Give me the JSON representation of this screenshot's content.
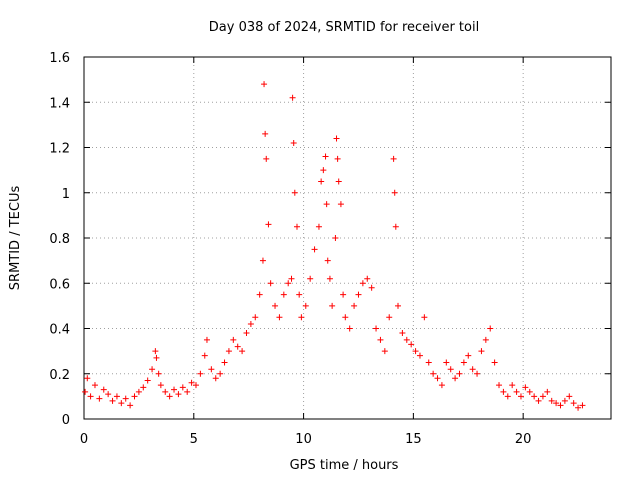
{
  "chart_data": {
    "type": "scatter",
    "title": "Day 038 of 2024, SRMTID for receiver toil",
    "xlabel": "GPS time / hours",
    "ylabel": "SRMTID / TECUs",
    "xlim": [
      0,
      24
    ],
    "ylim": [
      0,
      1.6
    ],
    "xticks": [
      0,
      5,
      10,
      15,
      20
    ],
    "xtick_labels": [
      "0",
      "5",
      "10",
      "15",
      "20"
    ],
    "yticks": [
      0,
      0.2,
      0.4,
      0.6,
      0.8,
      1,
      1.2,
      1.4,
      1.6
    ],
    "ytick_labels": [
      "0",
      "0.2",
      "0.4",
      "0.6",
      "0.8",
      "1",
      "1.2",
      "1.4",
      "1.6"
    ],
    "grid": true,
    "marker": "+",
    "color": "#ff0000",
    "series": [
      {
        "name": "SRMTID",
        "x": [
          0.05,
          0.15,
          0.3,
          0.5,
          0.7,
          0.9,
          1.1,
          1.3,
          1.5,
          1.7,
          1.9,
          2.1,
          2.3,
          2.5,
          2.7,
          2.9,
          3.1,
          3.25,
          3.3,
          3.4,
          3.5,
          3.7,
          3.9,
          4.1,
          4.3,
          4.5,
          4.7,
          4.9,
          5.1,
          5.3,
          5.5,
          5.6,
          5.8,
          6.0,
          6.2,
          6.4,
          6.6,
          6.8,
          7.0,
          7.2,
          7.4,
          7.6,
          7.8,
          8.0,
          8.15,
          8.2,
          8.25,
          8.3,
          8.4,
          8.5,
          8.7,
          8.9,
          9.1,
          9.3,
          9.45,
          9.5,
          9.55,
          9.6,
          9.7,
          9.8,
          9.9,
          10.1,
          10.3,
          10.5,
          10.7,
          10.8,
          10.9,
          11.0,
          11.05,
          11.1,
          11.2,
          11.3,
          11.45,
          11.5,
          11.55,
          11.6,
          11.7,
          11.8,
          11.9,
          12.1,
          12.3,
          12.5,
          12.7,
          12.9,
          13.1,
          13.3,
          13.5,
          13.7,
          13.9,
          14.1,
          14.15,
          14.2,
          14.3,
          14.5,
          14.7,
          14.9,
          15.1,
          15.3,
          15.5,
          15.7,
          15.9,
          16.1,
          16.3,
          16.5,
          16.7,
          16.9,
          17.1,
          17.3,
          17.5,
          17.7,
          17.9,
          18.1,
          18.3,
          18.5,
          18.7,
          18.9,
          19.1,
          19.3,
          19.5,
          19.7,
          19.9,
          20.1,
          20.3,
          20.5,
          20.7,
          20.9,
          21.1,
          21.3,
          21.5,
          21.7,
          21.9,
          22.1,
          22.3,
          22.5,
          22.7
        ],
        "y": [
          0.12,
          0.18,
          0.1,
          0.15,
          0.09,
          0.13,
          0.11,
          0.08,
          0.1,
          0.07,
          0.09,
          0.06,
          0.1,
          0.12,
          0.14,
          0.17,
          0.22,
          0.3,
          0.27,
          0.2,
          0.15,
          0.12,
          0.1,
          0.13,
          0.11,
          0.14,
          0.12,
          0.16,
          0.15,
          0.2,
          0.28,
          0.35,
          0.22,
          0.18,
          0.2,
          0.25,
          0.3,
          0.35,
          0.32,
          0.3,
          0.38,
          0.42,
          0.45,
          0.55,
          0.7,
          1.48,
          1.26,
          1.15,
          0.86,
          0.6,
          0.5,
          0.45,
          0.55,
          0.6,
          0.62,
          1.42,
          1.22,
          1.0,
          0.85,
          0.55,
          0.45,
          0.5,
          0.62,
          0.75,
          0.85,
          1.05,
          1.1,
          1.16,
          0.95,
          0.7,
          0.62,
          0.5,
          0.8,
          1.24,
          1.15,
          1.05,
          0.95,
          0.55,
          0.45,
          0.4,
          0.5,
          0.55,
          0.6,
          0.62,
          0.58,
          0.4,
          0.35,
          0.3,
          0.45,
          1.15,
          1.0,
          0.85,
          0.5,
          0.38,
          0.35,
          0.33,
          0.3,
          0.28,
          0.45,
          0.25,
          0.2,
          0.18,
          0.15,
          0.25,
          0.22,
          0.18,
          0.2,
          0.25,
          0.28,
          0.22,
          0.2,
          0.3,
          0.35,
          0.4,
          0.25,
          0.15,
          0.12,
          0.1,
          0.15,
          0.12,
          0.1,
          0.14,
          0.12,
          0.1,
          0.08,
          0.1,
          0.12,
          0.08,
          0.07,
          0.06,
          0.08,
          0.1,
          0.07,
          0.05,
          0.06
        ]
      }
    ]
  }
}
